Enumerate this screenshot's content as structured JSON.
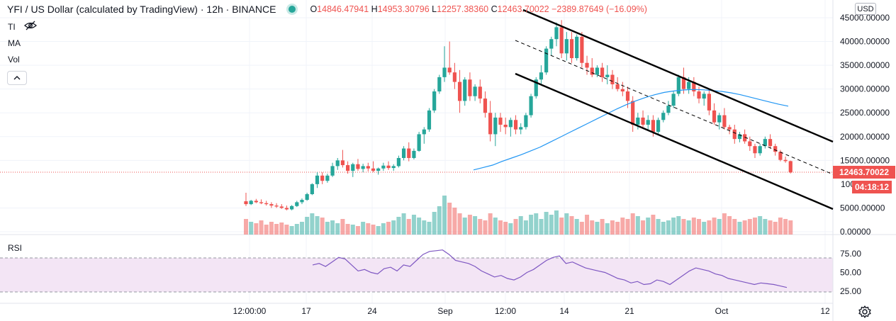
{
  "legend": {
    "title": "YFI / US Dollar (calculated by TradingView) · 12h · BINANCE",
    "ohlc": [
      {
        "k": "O",
        "v": "14846.47941"
      },
      {
        "k": "H",
        "v": "14953.30796"
      },
      {
        "k": "L",
        "v": "12257.38360"
      },
      {
        "k": "C",
        "v": "12463.70022"
      },
      {
        "k": "",
        "v": "−2389.87649 (−16.09%)"
      }
    ]
  },
  "indicators": {
    "ti": "TI",
    "ma": "MA",
    "vol": "Vol",
    "rsi": "RSI"
  },
  "currency": "USD",
  "price_tag": "12463.70022",
  "timer_tag": "04:18:12",
  "price_axis_partial": "100",
  "colors": {
    "up": "#26a69a",
    "down": "#ef5350",
    "ma": "#2196f3",
    "rsi": "#7e57c2",
    "rsi_band": "#f3e5f5"
  },
  "icons": [
    "eye-crossed-icon",
    "chevron-up-icon",
    "gear-icon"
  ],
  "chart_data": {
    "type": "candlestick",
    "symbol": "YFI / US Dollar",
    "timeframe": "12h",
    "exchange": "BINANCE",
    "price_ticks": [
      "45000.00000",
      "40000.00000",
      "35000.00000",
      "30000.00000",
      "25000.00000",
      "20000.00000",
      "15000.00000",
      "5000.00000",
      "0.00000"
    ],
    "price_tick_values": [
      45000,
      40000,
      35000,
      30000,
      25000,
      20000,
      15000,
      5000,
      0
    ],
    "x_ticks": [
      "12:00:00",
      "17",
      "24",
      "Sep",
      "12:00",
      "14",
      "21",
      "Oct",
      "12"
    ],
    "rsi_ticks": [
      "75.00",
      "50.00",
      "25.00"
    ],
    "rsi_levels": [
      70,
      30
    ],
    "candles": [
      [
        6400,
        8200,
        5400,
        5800
      ],
      [
        5800,
        6700,
        5600,
        6500
      ],
      [
        6500,
        6900,
        6000,
        6200
      ],
      [
        6200,
        6800,
        5800,
        6000
      ],
      [
        6000,
        6500,
        5500,
        5800
      ],
      [
        5800,
        6200,
        5000,
        5500
      ],
      [
        5500,
        6000,
        5000,
        5300
      ],
      [
        5300,
        5800,
        4800,
        5000
      ],
      [
        5000,
        5500,
        4500,
        4700
      ],
      [
        4700,
        5600,
        4500,
        5400
      ],
      [
        5400,
        6500,
        5200,
        6200
      ],
      [
        6200,
        7000,
        5800,
        6700
      ],
      [
        6700,
        8200,
        6500,
        7900
      ],
      [
        7900,
        10200,
        7700,
        10000
      ],
      [
        10000,
        12500,
        9200,
        11800
      ],
      [
        11800,
        12500,
        10000,
        10700
      ],
      [
        10700,
        12200,
        10300,
        11800
      ],
      [
        11800,
        14500,
        11500,
        13800
      ],
      [
        13800,
        15500,
        13000,
        15000
      ],
      [
        15000,
        17200,
        13500,
        14000
      ],
      [
        14000,
        14800,
        12200,
        12800
      ],
      [
        12800,
        14500,
        11500,
        14200
      ],
      [
        14200,
        15300,
        12800,
        13200
      ],
      [
        13200,
        14300,
        12500,
        13800
      ],
      [
        13800,
        14500,
        12700,
        13300
      ],
      [
        13300,
        14800,
        12500,
        12800
      ],
      [
        12800,
        13500,
        12000,
        13300
      ],
      [
        13300,
        14500,
        12800,
        13900
      ],
      [
        13900,
        14800,
        13000,
        13400
      ],
      [
        13400,
        14200,
        12800,
        13800
      ],
      [
        13800,
        16000,
        13500,
        15500
      ],
      [
        15500,
        18000,
        15000,
        17500
      ],
      [
        17500,
        18800,
        14800,
        15500
      ],
      [
        15500,
        17500,
        15200,
        17000
      ],
      [
        17000,
        21000,
        16800,
        20500
      ],
      [
        20500,
        22000,
        18500,
        21500
      ],
      [
        21500,
        26000,
        21000,
        25500
      ],
      [
        25500,
        30000,
        25000,
        29500
      ],
      [
        29500,
        33000,
        29000,
        32500
      ],
      [
        32500,
        39000,
        31500,
        34500
      ],
      [
        34500,
        40000,
        33000,
        33500
      ],
      [
        33500,
        35500,
        30000,
        31500
      ],
      [
        31500,
        34000,
        25000,
        27500
      ],
      [
        27500,
        32500,
        26500,
        32000
      ],
      [
        32000,
        33500,
        27500,
        28500
      ],
      [
        28500,
        31000,
        27500,
        30500
      ],
      [
        30500,
        32000,
        27000,
        28000
      ],
      [
        28000,
        29500,
        24000,
        25000
      ],
      [
        25000,
        27500,
        19000,
        20500
      ],
      [
        20500,
        25000,
        18000,
        24000
      ],
      [
        24000,
        25000,
        21000,
        22500
      ],
      [
        22500,
        24000,
        20500,
        22000
      ],
      [
        22000,
        24000,
        20000,
        23500
      ],
      [
        23500,
        24500,
        20500,
        21500
      ],
      [
        21500,
        22800,
        20500,
        22000
      ],
      [
        22000,
        25000,
        21500,
        24500
      ],
      [
        24500,
        29000,
        24000,
        28500
      ],
      [
        28500,
        32500,
        28000,
        32000
      ],
      [
        32000,
        35000,
        31000,
        33500
      ],
      [
        33500,
        39000,
        33000,
        38500
      ],
      [
        38500,
        41000,
        37000,
        40500
      ],
      [
        40500,
        44000,
        39000,
        43000
      ],
      [
        43000,
        44500,
        36500,
        37500
      ],
      [
        37500,
        42000,
        36000,
        40500
      ],
      [
        40500,
        42000,
        35500,
        36500
      ],
      [
        36500,
        41500,
        36000,
        41000
      ],
      [
        41000,
        42000,
        34500,
        35500
      ],
      [
        35500,
        37000,
        33000,
        34500
      ],
      [
        34500,
        36500,
        32500,
        33000
      ],
      [
        33000,
        35000,
        32500,
        34500
      ],
      [
        34500,
        35500,
        31500,
        32500
      ],
      [
        32500,
        35000,
        31000,
        33000
      ],
      [
        33000,
        34000,
        30000,
        31000
      ],
      [
        31000,
        32500,
        29500,
        30000
      ],
      [
        30000,
        31500,
        28500,
        29500
      ],
      [
        29500,
        30500,
        26000,
        27500
      ],
      [
        27500,
        28500,
        21000,
        22500
      ],
      [
        22500,
        25000,
        21500,
        24000
      ],
      [
        24000,
        25500,
        22000,
        22500
      ],
      [
        22500,
        24500,
        21500,
        23500
      ],
      [
        23500,
        24500,
        20000,
        21000
      ],
      [
        21000,
        24000,
        20500,
        23500
      ],
      [
        23500,
        25500,
        23000,
        25000
      ],
      [
        25000,
        27500,
        24500,
        26500
      ],
      [
        26500,
        29500,
        26000,
        29000
      ],
      [
        29000,
        33000,
        28500,
        32500
      ],
      [
        32500,
        34500,
        29000,
        30000
      ],
      [
        30000,
        32500,
        29000,
        31500
      ],
      [
        31500,
        32500,
        28500,
        29500
      ],
      [
        29500,
        30500,
        27000,
        28000
      ],
      [
        28000,
        29500,
        26500,
        29000
      ],
      [
        29000,
        29800,
        24500,
        25500
      ],
      [
        25500,
        27000,
        22500,
        23000
      ],
      [
        23000,
        25000,
        21500,
        24500
      ],
      [
        24500,
        26000,
        21500,
        22000
      ],
      [
        22000,
        22500,
        20500,
        21500
      ],
      [
        21500,
        22500,
        18500,
        19500
      ],
      [
        19500,
        21000,
        18800,
        20500
      ],
      [
        20500,
        21500,
        18500,
        19000
      ],
      [
        19000,
        20000,
        17000,
        18000
      ],
      [
        18000,
        18500,
        15500,
        16500
      ],
      [
        16500,
        18500,
        16000,
        18000
      ],
      [
        18000,
        20000,
        17500,
        19500
      ],
      [
        19500,
        20500,
        17500,
        18000
      ],
      [
        18000,
        18500,
        16000,
        16800
      ],
      [
        16800,
        17200,
        14800,
        15100
      ],
      [
        15100,
        15800,
        14500,
        14846
      ],
      [
        14846,
        14953,
        12257,
        12464
      ]
    ],
    "volumes": [
      22,
      18,
      16,
      20,
      14,
      18,
      15,
      17,
      14,
      12,
      15,
      18,
      25,
      30,
      26,
      24,
      18,
      20,
      16,
      22,
      15,
      14,
      12,
      18,
      16,
      14,
      12,
      16,
      18,
      20,
      25,
      30,
      22,
      28,
      24,
      20,
      18,
      32,
      40,
      55,
      45,
      38,
      30,
      24,
      28,
      26,
      22,
      20,
      30,
      24,
      20,
      18,
      16,
      22,
      26,
      20,
      28,
      30,
      22,
      32,
      28,
      34,
      24,
      30,
      26,
      22,
      18,
      28,
      20,
      18,
      22,
      16,
      20,
      18,
      24,
      22,
      30,
      26,
      20,
      24,
      28,
      22,
      18,
      20,
      24,
      26,
      22,
      20,
      24,
      22,
      18,
      20,
      24,
      22,
      30,
      26,
      22,
      18,
      20,
      22,
      24,
      26,
      22,
      20,
      18,
      24,
      22,
      20
    ],
    "ma": [
      13000,
      13500,
      14000,
      14800,
      15500,
      16200,
      17000,
      17800,
      18800,
      19800,
      20800,
      21800,
      22800,
      23800,
      24800,
      25800,
      26700,
      27500,
      28200,
      28800,
      29300,
      29600,
      29800,
      29900,
      29850,
      29700,
      29500,
      29200,
      28800,
      28300,
      27800,
      27300,
      26800,
      26400
    ],
    "rsi": [
      60,
      62,
      58,
      64,
      70,
      68,
      60,
      52,
      54,
      50,
      48,
      55,
      57,
      52,
      60,
      58,
      66,
      74,
      78,
      79,
      80,
      74,
      66,
      64,
      62,
      58,
      52,
      48,
      44,
      46,
      42,
      40,
      44,
      50,
      54,
      60,
      66,
      70,
      72,
      62,
      64,
      60,
      56,
      54,
      52,
      50,
      46,
      42,
      40,
      36,
      38,
      34,
      35,
      40,
      38,
      34,
      40,
      46,
      52,
      56,
      54,
      52,
      48,
      46,
      42,
      40,
      38,
      36,
      34,
      36,
      35,
      34,
      32,
      30
    ]
  }
}
